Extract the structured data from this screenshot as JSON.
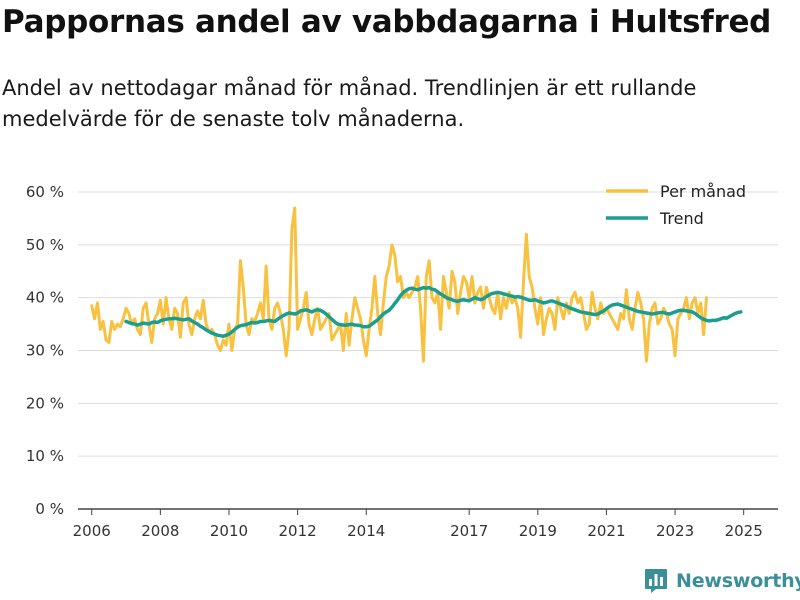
{
  "title": "Pappornas andel av vabbdagarna i Hultsfred",
  "subtitle": "Andel av nettodagar månad för månad. Trendlinjen är ett rullande medelvärde för de senaste tolv månaderna.",
  "brand": {
    "name": "Newsworthy",
    "color": "#3a8f99",
    "icon": "bar-chart-logo-icon"
  },
  "chart_data": {
    "type": "line",
    "y_axis": {
      "min": 0,
      "max": 60,
      "ticks": [
        0,
        10,
        20,
        30,
        40,
        50,
        60
      ],
      "tick_labels": [
        "0 %",
        "10 %",
        "20 %",
        "30 %",
        "40 %",
        "50 %",
        "60 %"
      ]
    },
    "x_axis": {
      "min": 2005.6,
      "max": 2026.0,
      "ticks": [
        2006,
        2008,
        2010,
        2012,
        2014,
        2017,
        2019,
        2021,
        2023,
        2025
      ],
      "tick_labels": [
        "2006",
        "2008",
        "2010",
        "2012",
        "2014",
        "2017",
        "2019",
        "2021",
        "2023",
        "2025"
      ]
    },
    "grid": true,
    "legend": {
      "position": "top-right",
      "entries": [
        "Per månad",
        "Trend"
      ]
    },
    "series": [
      {
        "name": "Per månad",
        "color": "#f9c140",
        "x_start": 2006.0,
        "x_step": 0.08333,
        "values": [
          38.5,
          36,
          39,
          34,
          35.5,
          32,
          31.5,
          35.5,
          34,
          35,
          34.5,
          36,
          38,
          37,
          35,
          36,
          34,
          33,
          38,
          39,
          35,
          31.5,
          36,
          37,
          39.5,
          35,
          40,
          36,
          34,
          38,
          37,
          32.5,
          39,
          40,
          35,
          33,
          36,
          37.5,
          36,
          39.5,
          35,
          33.5,
          34,
          33,
          31,
          30,
          32,
          31,
          35,
          30,
          34,
          35,
          47,
          42,
          35,
          33,
          36,
          35.5,
          37,
          39,
          36,
          46,
          36,
          34,
          38,
          39,
          37,
          34,
          29,
          34,
          53,
          57,
          34,
          36,
          38,
          41,
          35,
          33,
          36,
          38,
          34,
          35,
          36,
          37,
          32,
          33,
          34,
          35,
          30,
          37,
          31,
          36,
          40,
          38,
          36,
          32,
          29,
          34,
          38,
          44,
          37,
          33,
          39,
          44,
          46,
          50,
          48,
          43,
          44,
          40,
          41,
          40,
          41,
          42,
          44,
          38,
          28,
          44,
          47,
          40,
          39,
          41,
          34,
          44,
          41,
          38,
          45,
          43,
          37,
          41,
          44,
          43,
          40,
          44,
          39,
          41,
          42,
          38,
          42,
          40,
          38,
          37,
          41,
          36,
          40,
          38,
          41,
          39,
          40,
          38,
          32.5,
          43,
          52,
          44,
          42,
          38,
          35,
          40,
          33,
          36,
          38,
          37,
          34,
          40,
          38,
          36,
          39,
          37,
          40,
          41,
          39,
          40,
          37,
          34,
          35,
          41,
          38,
          36,
          39,
          37,
          38,
          37,
          36,
          35,
          34,
          37,
          36,
          41.5,
          36,
          34,
          38,
          41,
          39,
          36,
          28,
          35,
          38,
          39,
          35,
          36,
          38,
          37,
          35,
          34,
          29,
          36,
          37,
          38,
          40,
          36,
          39,
          40,
          37,
          39,
          33,
          40
        ]
      },
      {
        "name": "Trend",
        "color": "#1a9e8f",
        "x_start": 2007.0,
        "x_step": 0.08333,
        "values": [
          35.5,
          35.3,
          35.1,
          35.0,
          34.8,
          35.0,
          35.2,
          35.1,
          35.0,
          35.3,
          35.4,
          35.3,
          35.6,
          35.8,
          35.9,
          36.0,
          36.0,
          36.1,
          36.0,
          35.9,
          35.8,
          35.9,
          36.0,
          35.6,
          35.3,
          35.0,
          34.6,
          34.3,
          33.9,
          33.6,
          33.3,
          33.1,
          32.9,
          32.8,
          32.7,
          32.9,
          33.1,
          33.5,
          34.0,
          34.4,
          34.7,
          34.8,
          34.9,
          35.1,
          35.3,
          35.2,
          35.3,
          35.5,
          35.5,
          35.6,
          35.7,
          35.6,
          35.5,
          35.9,
          36.3,
          36.6,
          36.9,
          37.1,
          37.0,
          36.9,
          37.1,
          37.5,
          37.6,
          37.7,
          37.5,
          37.3,
          37.6,
          37.7,
          37.6,
          37.3,
          36.9,
          36.4,
          35.9,
          35.4,
          35.0,
          34.9,
          34.8,
          34.8,
          34.9,
          35.0,
          34.8,
          34.8,
          34.7,
          34.5,
          34.5,
          34.6,
          35.0,
          35.4,
          35.8,
          36.4,
          36.9,
          37.3,
          37.6,
          38.2,
          38.9,
          39.6,
          40.4,
          41.0,
          41.4,
          41.7,
          41.8,
          41.6,
          41.5,
          41.7,
          41.9,
          41.8,
          41.9,
          41.6,
          41.5,
          41.1,
          40.7,
          40.4,
          40.0,
          39.8,
          39.6,
          39.4,
          39.3,
          39.5,
          39.6,
          39.5,
          39.4,
          39.7,
          40.0,
          39.8,
          39.6,
          39.8,
          40.2,
          40.5,
          40.8,
          40.9,
          41.0,
          40.9,
          40.7,
          40.6,
          40.4,
          40.3,
          40.1,
          40.2,
          40.1,
          39.9,
          39.7,
          39.5,
          39.5,
          39.6,
          39.4,
          39.2,
          39.0,
          39.1,
          39.3,
          39.4,
          39.2,
          39.0,
          38.8,
          38.6,
          38.4,
          38.1,
          37.9,
          37.7,
          37.5,
          37.3,
          37.2,
          37.1,
          37.0,
          36.9,
          36.8,
          36.9,
          37.2,
          37.5,
          37.9,
          38.3,
          38.6,
          38.7,
          38.8,
          38.6,
          38.4,
          38.2,
          38.0,
          37.8,
          37.6,
          37.4,
          37.3,
          37.2,
          37.1,
          37.0,
          36.9,
          37.0,
          37.1,
          37.2,
          37.2,
          37.0,
          36.9,
          37.1,
          37.3,
          37.5,
          37.6,
          37.6,
          37.5,
          37.4,
          37.3,
          37.0,
          36.6,
          36.2,
          35.9,
          35.7,
          35.6,
          35.7,
          35.7,
          35.8,
          36.0,
          36.2,
          36.1,
          36.4,
          36.7,
          37.0,
          37.2,
          37.3
        ]
      }
    ]
  }
}
